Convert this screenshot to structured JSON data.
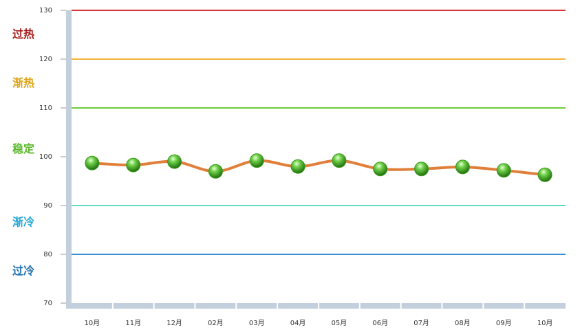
{
  "chart_data": {
    "type": "line",
    "categories": [
      "10月",
      "11月",
      "12月",
      "02月",
      "03月",
      "04月",
      "05月",
      "06月",
      "07月",
      "08月",
      "09月",
      "10月"
    ],
    "series": [
      {
        "line_color": "#e07f3a",
        "marker_color": "#3a9a1a",
        "values": [
          98.7,
          98.3,
          99.0,
          97.0,
          99.2,
          98.0,
          99.2,
          97.5,
          97.5,
          97.9,
          97.2,
          96.3
        ]
      }
    ],
    "ylim": [
      70,
      130
    ],
    "yticks": [
      70,
      80,
      90,
      100,
      110,
      120,
      130
    ],
    "thresholds": [
      {
        "value": 130,
        "color": "#d9363a"
      },
      {
        "value": 120,
        "color": "#f5b335"
      },
      {
        "value": 110,
        "color": "#6ccb3a"
      },
      {
        "value": 90,
        "color": "#5fdcc0"
      },
      {
        "value": 80,
        "color": "#3a8fd0"
      }
    ],
    "zones": [
      {
        "label": "过热",
        "center": 125,
        "color": "#a8201f"
      },
      {
        "label": "渐热",
        "center": 115,
        "color": "#e0a316"
      },
      {
        "label": "稳定",
        "center": 101.5,
        "color": "#5cb82e"
      },
      {
        "label": "渐冷",
        "center": 86.5,
        "color": "#27a8d6"
      },
      {
        "label": "过冷",
        "center": 76.5,
        "color": "#1f6fae"
      }
    ]
  }
}
